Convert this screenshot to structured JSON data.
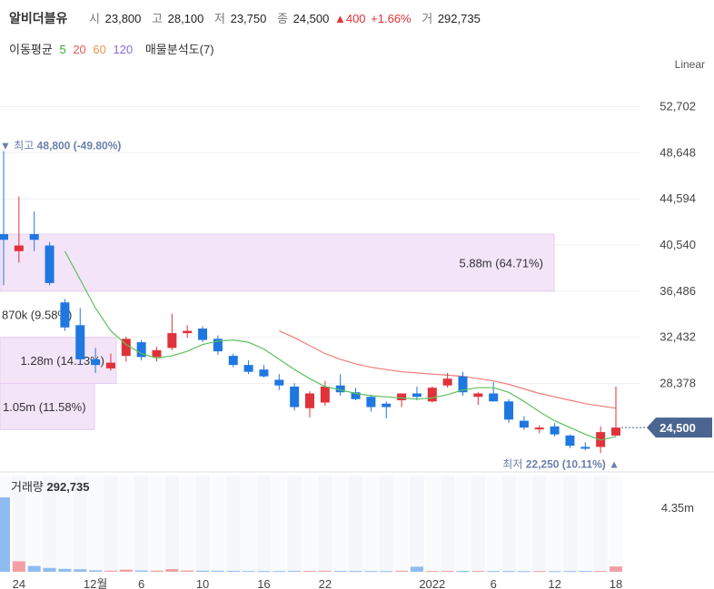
{
  "header": {
    "name": "알비더블유",
    "open_label": "시",
    "open": "23,800",
    "high_label": "고",
    "high": "28,100",
    "low_label": "저",
    "low": "23,750",
    "close_label": "종",
    "close": "24,500",
    "change": "▲400",
    "change_pct": "+1.66%",
    "volume_label": "거",
    "volume": "292,735"
  },
  "ma_legend": {
    "label": "이동평균",
    "periods": [
      "5",
      "20",
      "60",
      "120"
    ],
    "colors": [
      "#3aa63a",
      "#e65c5c",
      "#e8974a",
      "#8a6ad8"
    ],
    "volume_profile_label": "매물분석도(7)"
  },
  "scale_label": "Linear",
  "colors": {
    "up": "#e0323a",
    "down": "#1f77e0",
    "ma5": "#5cc15c",
    "ma20": "#ef7c7c",
    "profile": "#f4e4f8",
    "price_tag": "#4a6590"
  },
  "chart_data": {
    "type": "candlestick",
    "y_ticks": [
      "52,702",
      "48,648",
      "44,594",
      "40,540",
      "36,486",
      "32,432",
      "28,378"
    ],
    "ylim": [
      21000,
      54500
    ],
    "current_price": 24500,
    "current_price_label": "24,500",
    "high_marker": {
      "label": "▼ 최고",
      "value": "48,800 (-49.80%)",
      "price": 48800
    },
    "low_marker": {
      "label": "최저",
      "value": "22,250 (10.11%)",
      "price": 22250
    },
    "volume_profile": [
      {
        "low": 36486,
        "high": 41500,
        "label": "5.88m (64.71%)"
      },
      {
        "low": 32432,
        "high": 36486,
        "label": "870k (9.58%)"
      },
      {
        "low": 28378,
        "high": 32432,
        "label": "1.28m (14.13%)"
      },
      {
        "low": 24324,
        "high": 28378,
        "label": "1.05m (11.58%)"
      }
    ],
    "x_labels": [
      {
        "index": 1,
        "label": "24"
      },
      {
        "index": 6,
        "label": "12월"
      },
      {
        "index": 9,
        "label": "6"
      },
      {
        "index": 13,
        "label": "10"
      },
      {
        "index": 17,
        "label": "16"
      },
      {
        "index": 21,
        "label": "22"
      },
      {
        "index": 28,
        "label": "2022"
      },
      {
        "index": 32,
        "label": "6"
      },
      {
        "index": 36,
        "label": "12"
      },
      {
        "index": 40,
        "label": "18"
      }
    ],
    "candles": [
      {
        "o": 41500,
        "h": 48800,
        "l": 37000,
        "c": 41000
      },
      {
        "o": 40000,
        "h": 44800,
        "l": 39000,
        "c": 40500
      },
      {
        "o": 41500,
        "h": 43500,
        "l": 40000,
        "c": 41000
      },
      {
        "o": 40500,
        "h": 40800,
        "l": 37000,
        "c": 37200
      },
      {
        "o": 35500,
        "h": 35800,
        "l": 33000,
        "c": 33300
      },
      {
        "o": 33500,
        "h": 35000,
        "l": 30000,
        "c": 30500
      },
      {
        "o": 30500,
        "h": 31500,
        "l": 29300,
        "c": 30000
      },
      {
        "o": 29700,
        "h": 31000,
        "l": 29500,
        "c": 30200
      },
      {
        "o": 30800,
        "h": 32500,
        "l": 30300,
        "c": 32300
      },
      {
        "o": 32000,
        "h": 32200,
        "l": 30400,
        "c": 30700
      },
      {
        "o": 30700,
        "h": 31600,
        "l": 30300,
        "c": 31300
      },
      {
        "o": 31500,
        "h": 34500,
        "l": 31300,
        "c": 32800
      },
      {
        "o": 32800,
        "h": 33500,
        "l": 32400,
        "c": 33000
      },
      {
        "o": 33200,
        "h": 33400,
        "l": 32000,
        "c": 32200
      },
      {
        "o": 32300,
        "h": 32600,
        "l": 30900,
        "c": 31200
      },
      {
        "o": 30800,
        "h": 31000,
        "l": 29800,
        "c": 30000
      },
      {
        "o": 30000,
        "h": 30400,
        "l": 29200,
        "c": 29400
      },
      {
        "o": 29600,
        "h": 30000,
        "l": 28900,
        "c": 29000
      },
      {
        "o": 28700,
        "h": 29200,
        "l": 27800,
        "c": 28200
      },
      {
        "o": 28100,
        "h": 28400,
        "l": 26000,
        "c": 26300
      },
      {
        "o": 26200,
        "h": 27700,
        "l": 25400,
        "c": 27500
      },
      {
        "o": 26700,
        "h": 28600,
        "l": 26400,
        "c": 28100
      },
      {
        "o": 28200,
        "h": 29200,
        "l": 27300,
        "c": 27600
      },
      {
        "o": 27600,
        "h": 28000,
        "l": 26900,
        "c": 27000
      },
      {
        "o": 27200,
        "h": 27400,
        "l": 25900,
        "c": 26300
      },
      {
        "o": 26600,
        "h": 26800,
        "l": 25300,
        "c": 26300
      },
      {
        "o": 26900,
        "h": 27500,
        "l": 26300,
        "c": 27500
      },
      {
        "o": 27500,
        "h": 28100,
        "l": 26900,
        "c": 27200
      },
      {
        "o": 26800,
        "h": 28100,
        "l": 26700,
        "c": 28000
      },
      {
        "o": 28200,
        "h": 29300,
        "l": 28000,
        "c": 28800
      },
      {
        "o": 29000,
        "h": 29400,
        "l": 27300,
        "c": 27600
      },
      {
        "o": 27200,
        "h": 27600,
        "l": 26500,
        "c": 27500
      },
      {
        "o": 27500,
        "h": 28500,
        "l": 26800,
        "c": 26800
      },
      {
        "o": 26800,
        "h": 27000,
        "l": 24900,
        "c": 25200
      },
      {
        "o": 25100,
        "h": 25500,
        "l": 24300,
        "c": 24500
      },
      {
        "o": 24400,
        "h": 24700,
        "l": 24000,
        "c": 24500
      },
      {
        "o": 24600,
        "h": 24900,
        "l": 23700,
        "c": 23900
      },
      {
        "o": 23800,
        "h": 23900,
        "l": 22700,
        "c": 22900
      },
      {
        "o": 22800,
        "h": 23200,
        "l": 22500,
        "c": 22700
      },
      {
        "o": 22800,
        "h": 24600,
        "l": 22250,
        "c": 24100
      },
      {
        "o": 23800,
        "h": 28100,
        "l": 23750,
        "c": 24500
      }
    ],
    "ma5": [
      null,
      null,
      null,
      null,
      40000,
      37500,
      35000,
      33000,
      31800,
      31000,
      30600,
      30800,
      31200,
      31800,
      32100,
      32200,
      32000,
      31400,
      30500,
      29600,
      28800,
      28100,
      27800,
      27500,
      27300,
      27200,
      27100,
      27000,
      27100,
      27400,
      27800,
      28000,
      28000,
      27600,
      26800,
      25900,
      25100,
      24500,
      23900,
      23400,
      23700
    ],
    "ma20": [
      null,
      null,
      null,
      null,
      null,
      null,
      null,
      null,
      null,
      null,
      null,
      null,
      null,
      null,
      null,
      null,
      null,
      null,
      33000,
      32400,
      31700,
      31000,
      30500,
      30100,
      29800,
      29600,
      29400,
      29300,
      29200,
      29100,
      29000,
      28800,
      28600,
      28300,
      27900,
      27500,
      27200,
      26900,
      26600,
      26400,
      26200
    ],
    "volume": {
      "label": "거래량",
      "value": "292,735",
      "axis_tick": "4.35m",
      "ymax": 5000000,
      "bars": [
        4100000,
        580000,
        320000,
        210000,
        160000,
        140000,
        80000,
        60000,
        120000,
        70000,
        60000,
        150000,
        70000,
        60000,
        55000,
        50000,
        45000,
        40000,
        40000,
        45000,
        50000,
        55000,
        45000,
        40000,
        40000,
        35000,
        55000,
        280000,
        40000,
        45000,
        50000,
        45000,
        40000,
        40000,
        35000,
        40000,
        35000,
        35000,
        45000,
        40000,
        292735
      ]
    }
  }
}
